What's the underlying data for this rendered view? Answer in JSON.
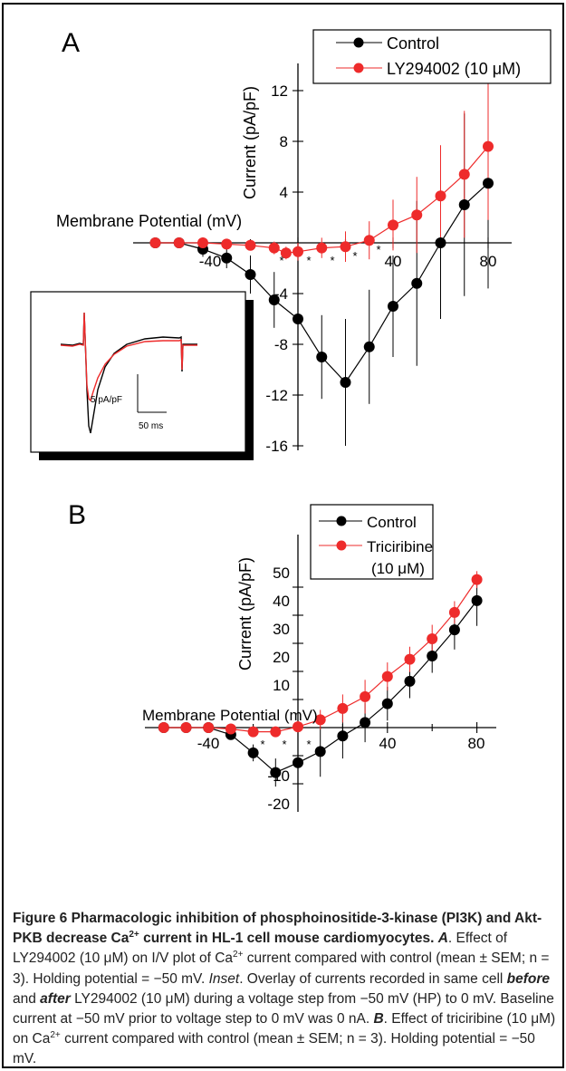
{
  "panels": [
    {
      "panel_label": "A",
      "xlabel": "Membrane Potential (mV)",
      "ylabel": "Current (pA/pF)",
      "x_ticks": [
        "-40",
        "40",
        "80"
      ],
      "y_ticks": [
        "12",
        "8",
        "4",
        "-4",
        "-8",
        "-12",
        "-16"
      ],
      "legend": [
        "Control",
        "LY294002 (10 μM)"
      ],
      "inset": {
        "scale_y": "5 pA/pF",
        "scale_x": "50 ms"
      }
    },
    {
      "panel_label": "B",
      "xlabel": "Membrane Potential (mV)",
      "ylabel": "Current (pA/pF)",
      "x_ticks": [
        "-40",
        "40",
        "80"
      ],
      "y_ticks": [
        "50",
        "40",
        "30",
        "20",
        "10",
        "-10",
        "-20"
      ],
      "legend": [
        "Control",
        "Triciribine",
        "(10 μM)"
      ]
    }
  ],
  "chart_data": [
    {
      "type": "line",
      "panel": "A",
      "xlabel": "Membrane Potential (mV)",
      "ylabel": "Current (pA/pF)",
      "xlim": [
        -70,
        90
      ],
      "ylim": [
        -17,
        14
      ],
      "x": [
        -60,
        -50,
        -40,
        -30,
        -20,
        -10,
        0,
        10,
        20,
        30,
        40,
        50,
        60,
        70,
        80
      ],
      "series": [
        {
          "name": "Control",
          "color": "#000000",
          "values": [
            0,
            0,
            -0.5,
            -1.2,
            -2.5,
            -4.5,
            -6,
            -9,
            -11,
            -8.2,
            -5,
            -3.2,
            0,
            3,
            4.7
          ],
          "errors": [
            0.3,
            0.3,
            0.6,
            0.8,
            1.5,
            2.2,
            3,
            3.3,
            5,
            4.5,
            4,
            6.5,
            6,
            7.2,
            8.3
          ]
        },
        {
          "name": "LY294002 (10 μM)",
          "color": "#ee2b2b",
          "values": [
            0,
            0,
            0,
            -0.1,
            -0.2,
            -0.4,
            -0.8,
            -0.7,
            -0.4,
            -0.3,
            0.2,
            1.4,
            2.2,
            3.7,
            5.4,
            7.6
          ],
          "x": [
            -60,
            -50,
            -40,
            -30,
            -20,
            -10,
            -5,
            0,
            10,
            20,
            30,
            40,
            50,
            60,
            70,
            80
          ],
          "errors": [
            0.2,
            0.2,
            0.3,
            0.2,
            0.3,
            0.5,
            0.5,
            0.7,
            0.8,
            1.2,
            1.5,
            2,
            3,
            4,
            5,
            5.8
          ]
        }
      ],
      "significance_marks": [
        "*",
        "*",
        "*",
        "*",
        "*"
      ],
      "legend_position": "top-right"
    },
    {
      "type": "line",
      "panel": "B",
      "xlabel": "Membrane Potential (mV)",
      "ylabel": "Current (pA/pF)",
      "xlim": [
        -70,
        90
      ],
      "ylim": [
        -22,
        57
      ],
      "x": [
        -60,
        -50,
        -40,
        -30,
        -20,
        -10,
        0,
        10,
        20,
        30,
        40,
        50,
        60,
        70,
        80
      ],
      "series": [
        {
          "name": "Control",
          "color": "#000000",
          "values": [
            0,
            0,
            0,
            -2.5,
            -9,
            -16,
            -12.5,
            -8.5,
            -3,
            1.8,
            8.5,
            16.5,
            25.5,
            34.8,
            45.2
          ],
          "errors": [
            0.3,
            0.3,
            0.5,
            1,
            3,
            5,
            6,
            9,
            8,
            7,
            6,
            6,
            6,
            7,
            9
          ]
        },
        {
          "name": "Triciribine (10 μM)",
          "color": "#ee2b2b",
          "values": [
            0,
            0,
            0,
            -0.5,
            -1.5,
            -1.5,
            0.3,
            2.8,
            6.8,
            11,
            18.2,
            24.3,
            31.6,
            41,
            52.7
          ],
          "errors": [
            0.3,
            0.3,
            0.4,
            0.5,
            1,
            1.5,
            2,
            3.5,
            5,
            6,
            5,
            4.5,
            5,
            4,
            3
          ]
        }
      ],
      "significance_marks": [
        "*",
        "*",
        "*"
      ],
      "legend_position": "top-left"
    }
  ],
  "caption": {
    "title_parts": [
      "Figure 6 Pharmacologic inhibition of phosphoinositide-3-kinase (PI3K) and Akt-PKB decrease Ca",
      "2+",
      " current in HL-1 cell mouse cardiomyocytes. "
    ],
    "a_label": "A",
    "a_text_1": ". Effect of LY294002 (10 μM) on I/V plot of Ca",
    "sup": "2+",
    "a_text_2": " current compared with control (mean ± SEM; n = 3). Holding potential = −50 mV. ",
    "inset_label": "Inset",
    "inset_text_1": ". Overlay of currents recorded in same cell ",
    "before": "before",
    "and": " and ",
    "after": "after",
    "inset_text_2": " LY294002 (10 μM) during a voltage step from −50 mV (HP) to 0 mV. Baseline current at −50 mV prior to voltage step to 0 mV was 0 nA. ",
    "b_label": "B",
    "b_text_1": ". Effect of triciribine (10 μM) on Ca",
    "b_text_2": " current compared with control (mean ± SEM; n = 3). Holding potential = −50 mV."
  }
}
